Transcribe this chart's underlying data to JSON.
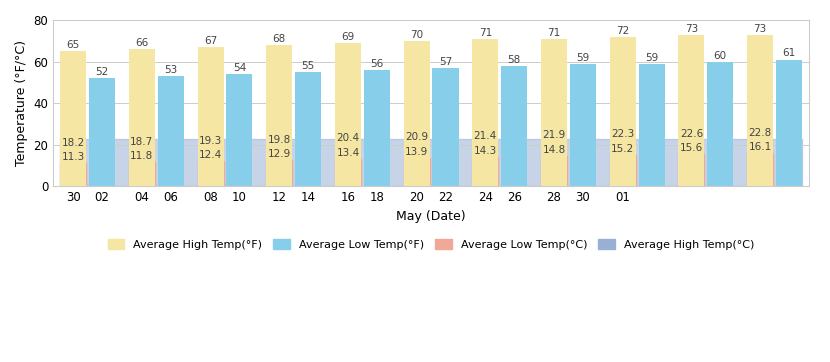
{
  "high_f_vals": [
    65,
    66,
    67,
    68,
    69,
    70,
    71,
    71,
    72,
    73,
    73
  ],
  "low_f_vals": [
    52,
    53,
    54,
    55,
    56,
    57,
    58,
    59,
    59,
    60,
    61
  ],
  "high_c_vals": [
    18.2,
    18.7,
    19.3,
    19.8,
    20.4,
    20.9,
    21.4,
    21.9,
    22.3,
    22.6,
    22.8
  ],
  "low_c_vals": [
    11.3,
    11.8,
    12.4,
    12.9,
    13.4,
    13.9,
    14.3,
    14.8,
    15.2,
    15.6,
    16.1
  ],
  "x_labels": [
    "30",
    "02",
    "04",
    "06",
    "08",
    "10",
    "12",
    "14",
    "16",
    "18",
    "20",
    "22",
    "24",
    "26",
    "28",
    "30",
    "01"
  ],
  "color_high_f": "#F5E6A3",
  "color_low_f": "#87CEEB",
  "color_high_c": "#9AAFD4",
  "color_low_c": "#F0A898",
  "xlabel": "May (Date)",
  "ylabel": "Temperature (°F/°C)",
  "ylim": [
    0,
    80
  ],
  "yticks": [
    0,
    20,
    40,
    60,
    80
  ],
  "background_color": "#ffffff",
  "grid_color": "#cccccc"
}
